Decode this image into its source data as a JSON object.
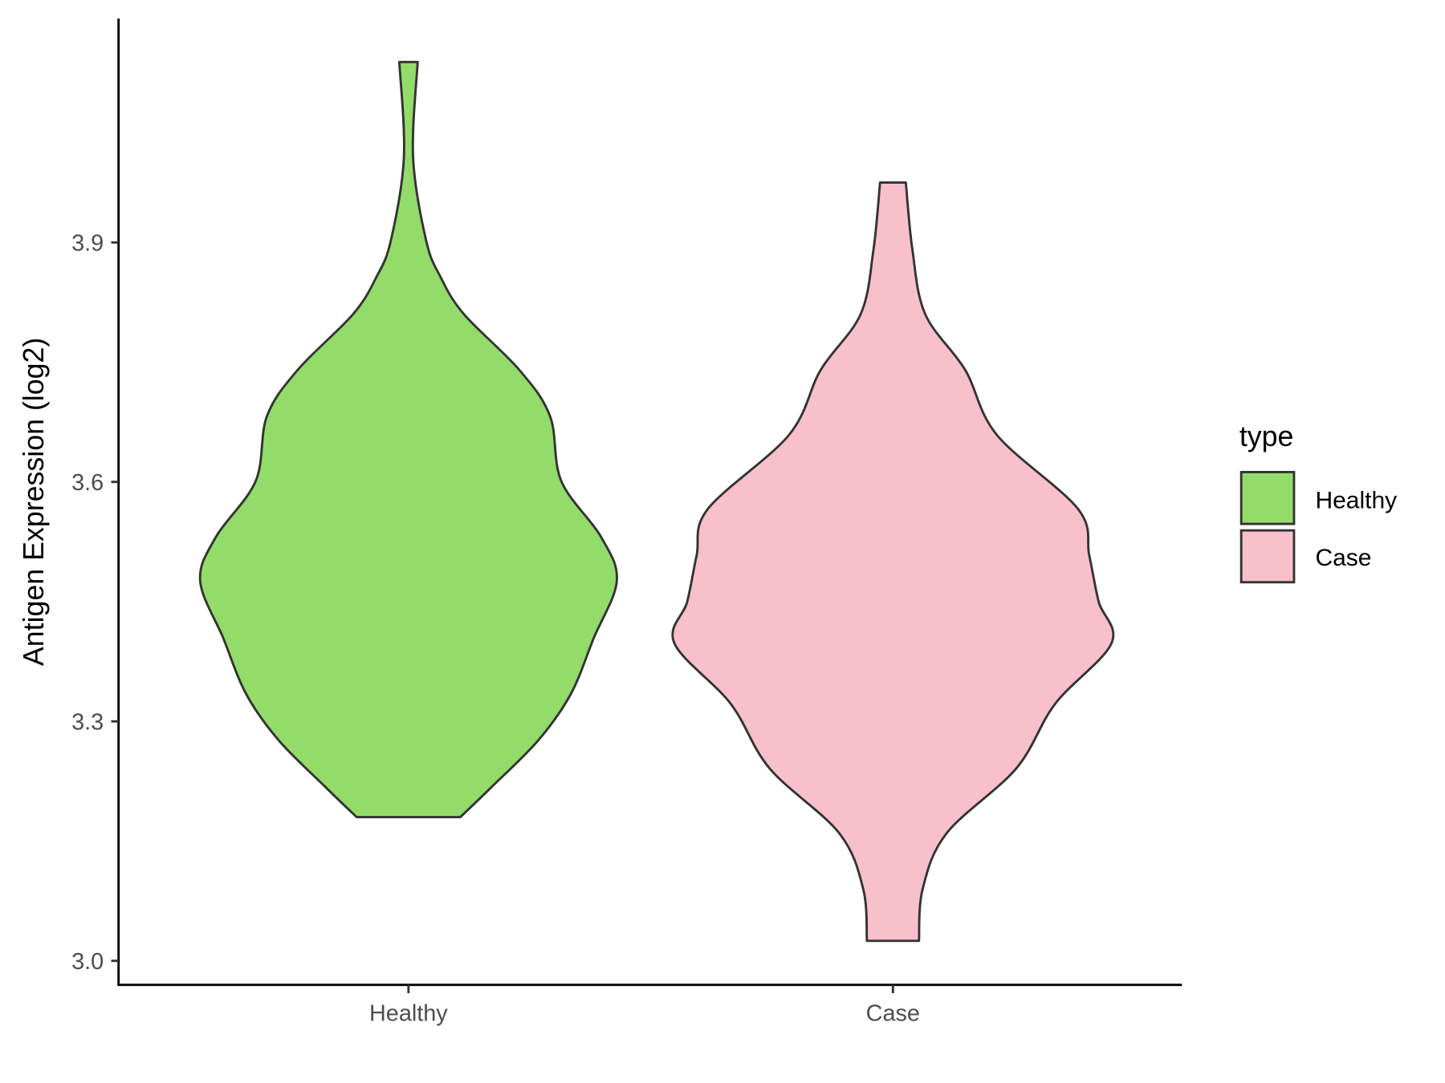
{
  "chart_data": {
    "type": "violin",
    "title": "",
    "xlabel": "",
    "ylabel": "Antigen Expression (log2)",
    "ylim": [
      2.96,
      4.17
    ],
    "yticks": [
      3.0,
      3.3,
      3.6,
      3.9
    ],
    "ytick_labels": [
      "3.0",
      "3.3",
      "3.6",
      "3.9"
    ],
    "categories": [
      "Healthy",
      "Case"
    ],
    "grid": false,
    "legend": {
      "title": "type",
      "position": "right",
      "entries": [
        "Healthy",
        "Case"
      ]
    },
    "series": [
      {
        "name": "Healthy",
        "color": "#93DC6A",
        "profile": [
          [
            4.126,
            0.042
          ],
          [
            4.007,
            0.021
          ],
          [
            3.902,
            0.081
          ],
          [
            3.856,
            0.148
          ],
          [
            3.81,
            0.254
          ],
          [
            3.74,
            0.508
          ],
          [
            3.682,
            0.648
          ],
          [
            3.601,
            0.699
          ],
          [
            3.531,
            0.881
          ],
          [
            3.476,
            0.953
          ],
          [
            3.404,
            0.847
          ],
          [
            3.334,
            0.742
          ],
          [
            3.276,
            0.593
          ],
          [
            3.218,
            0.381
          ],
          [
            3.18,
            0.237
          ]
        ]
      },
      {
        "name": "Case",
        "color": "#F8C0CB",
        "profile": [
          [
            3.975,
            0.059
          ],
          [
            3.891,
            0.089
          ],
          [
            3.81,
            0.148
          ],
          [
            3.74,
            0.331
          ],
          [
            3.659,
            0.475
          ],
          [
            3.566,
            0.847
          ],
          [
            3.508,
            0.898
          ],
          [
            3.45,
            0.941
          ],
          [
            3.398,
            1.0
          ],
          [
            3.322,
            0.742
          ],
          [
            3.241,
            0.564
          ],
          [
            3.16,
            0.246
          ],
          [
            3.09,
            0.136
          ],
          [
            3.025,
            0.119
          ]
        ]
      }
    ]
  }
}
